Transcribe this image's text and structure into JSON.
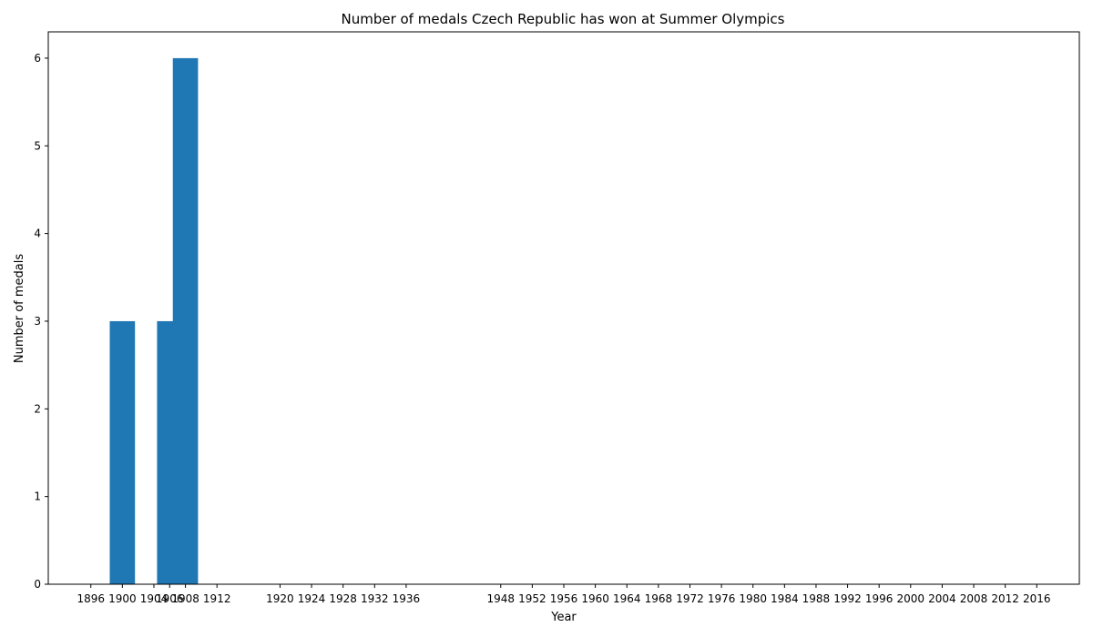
{
  "chart_data": {
    "type": "bar",
    "title": "Number of medals Czech Republic has won at Summer Olympics",
    "xlabel": "Year",
    "ylabel": "Number of medals",
    "categories": [
      "1896",
      "1900",
      "1904",
      "1906",
      "1908",
      "1912",
      "1920",
      "1924",
      "1928",
      "1932",
      "1936",
      "1948",
      "1952",
      "1956",
      "1960",
      "1964",
      "1968",
      "1972",
      "1976",
      "1980",
      "1984",
      "1988",
      "1992",
      "1996",
      "2000",
      "2004",
      "2008",
      "2012",
      "2016"
    ],
    "x": [
      1896,
      1900,
      1904,
      1906,
      1908,
      1912,
      1920,
      1924,
      1928,
      1932,
      1936,
      1948,
      1952,
      1956,
      1960,
      1964,
      1968,
      1972,
      1976,
      1980,
      1984,
      1988,
      1992,
      1996,
      2000,
      2004,
      2008,
      2012,
      2016
    ],
    "values": [
      0,
      3,
      0,
      3,
      6,
      0,
      0,
      0,
      0,
      0,
      0,
      0,
      0,
      0,
      0,
      0,
      0,
      0,
      0,
      0,
      0,
      0,
      0,
      0,
      0,
      0,
      0,
      0,
      0
    ],
    "yticks": [
      0,
      1,
      2,
      3,
      4,
      5,
      6
    ],
    "ylim": [
      0,
      6.3
    ],
    "grid": false,
    "bar_color": "#1f77b4"
  }
}
